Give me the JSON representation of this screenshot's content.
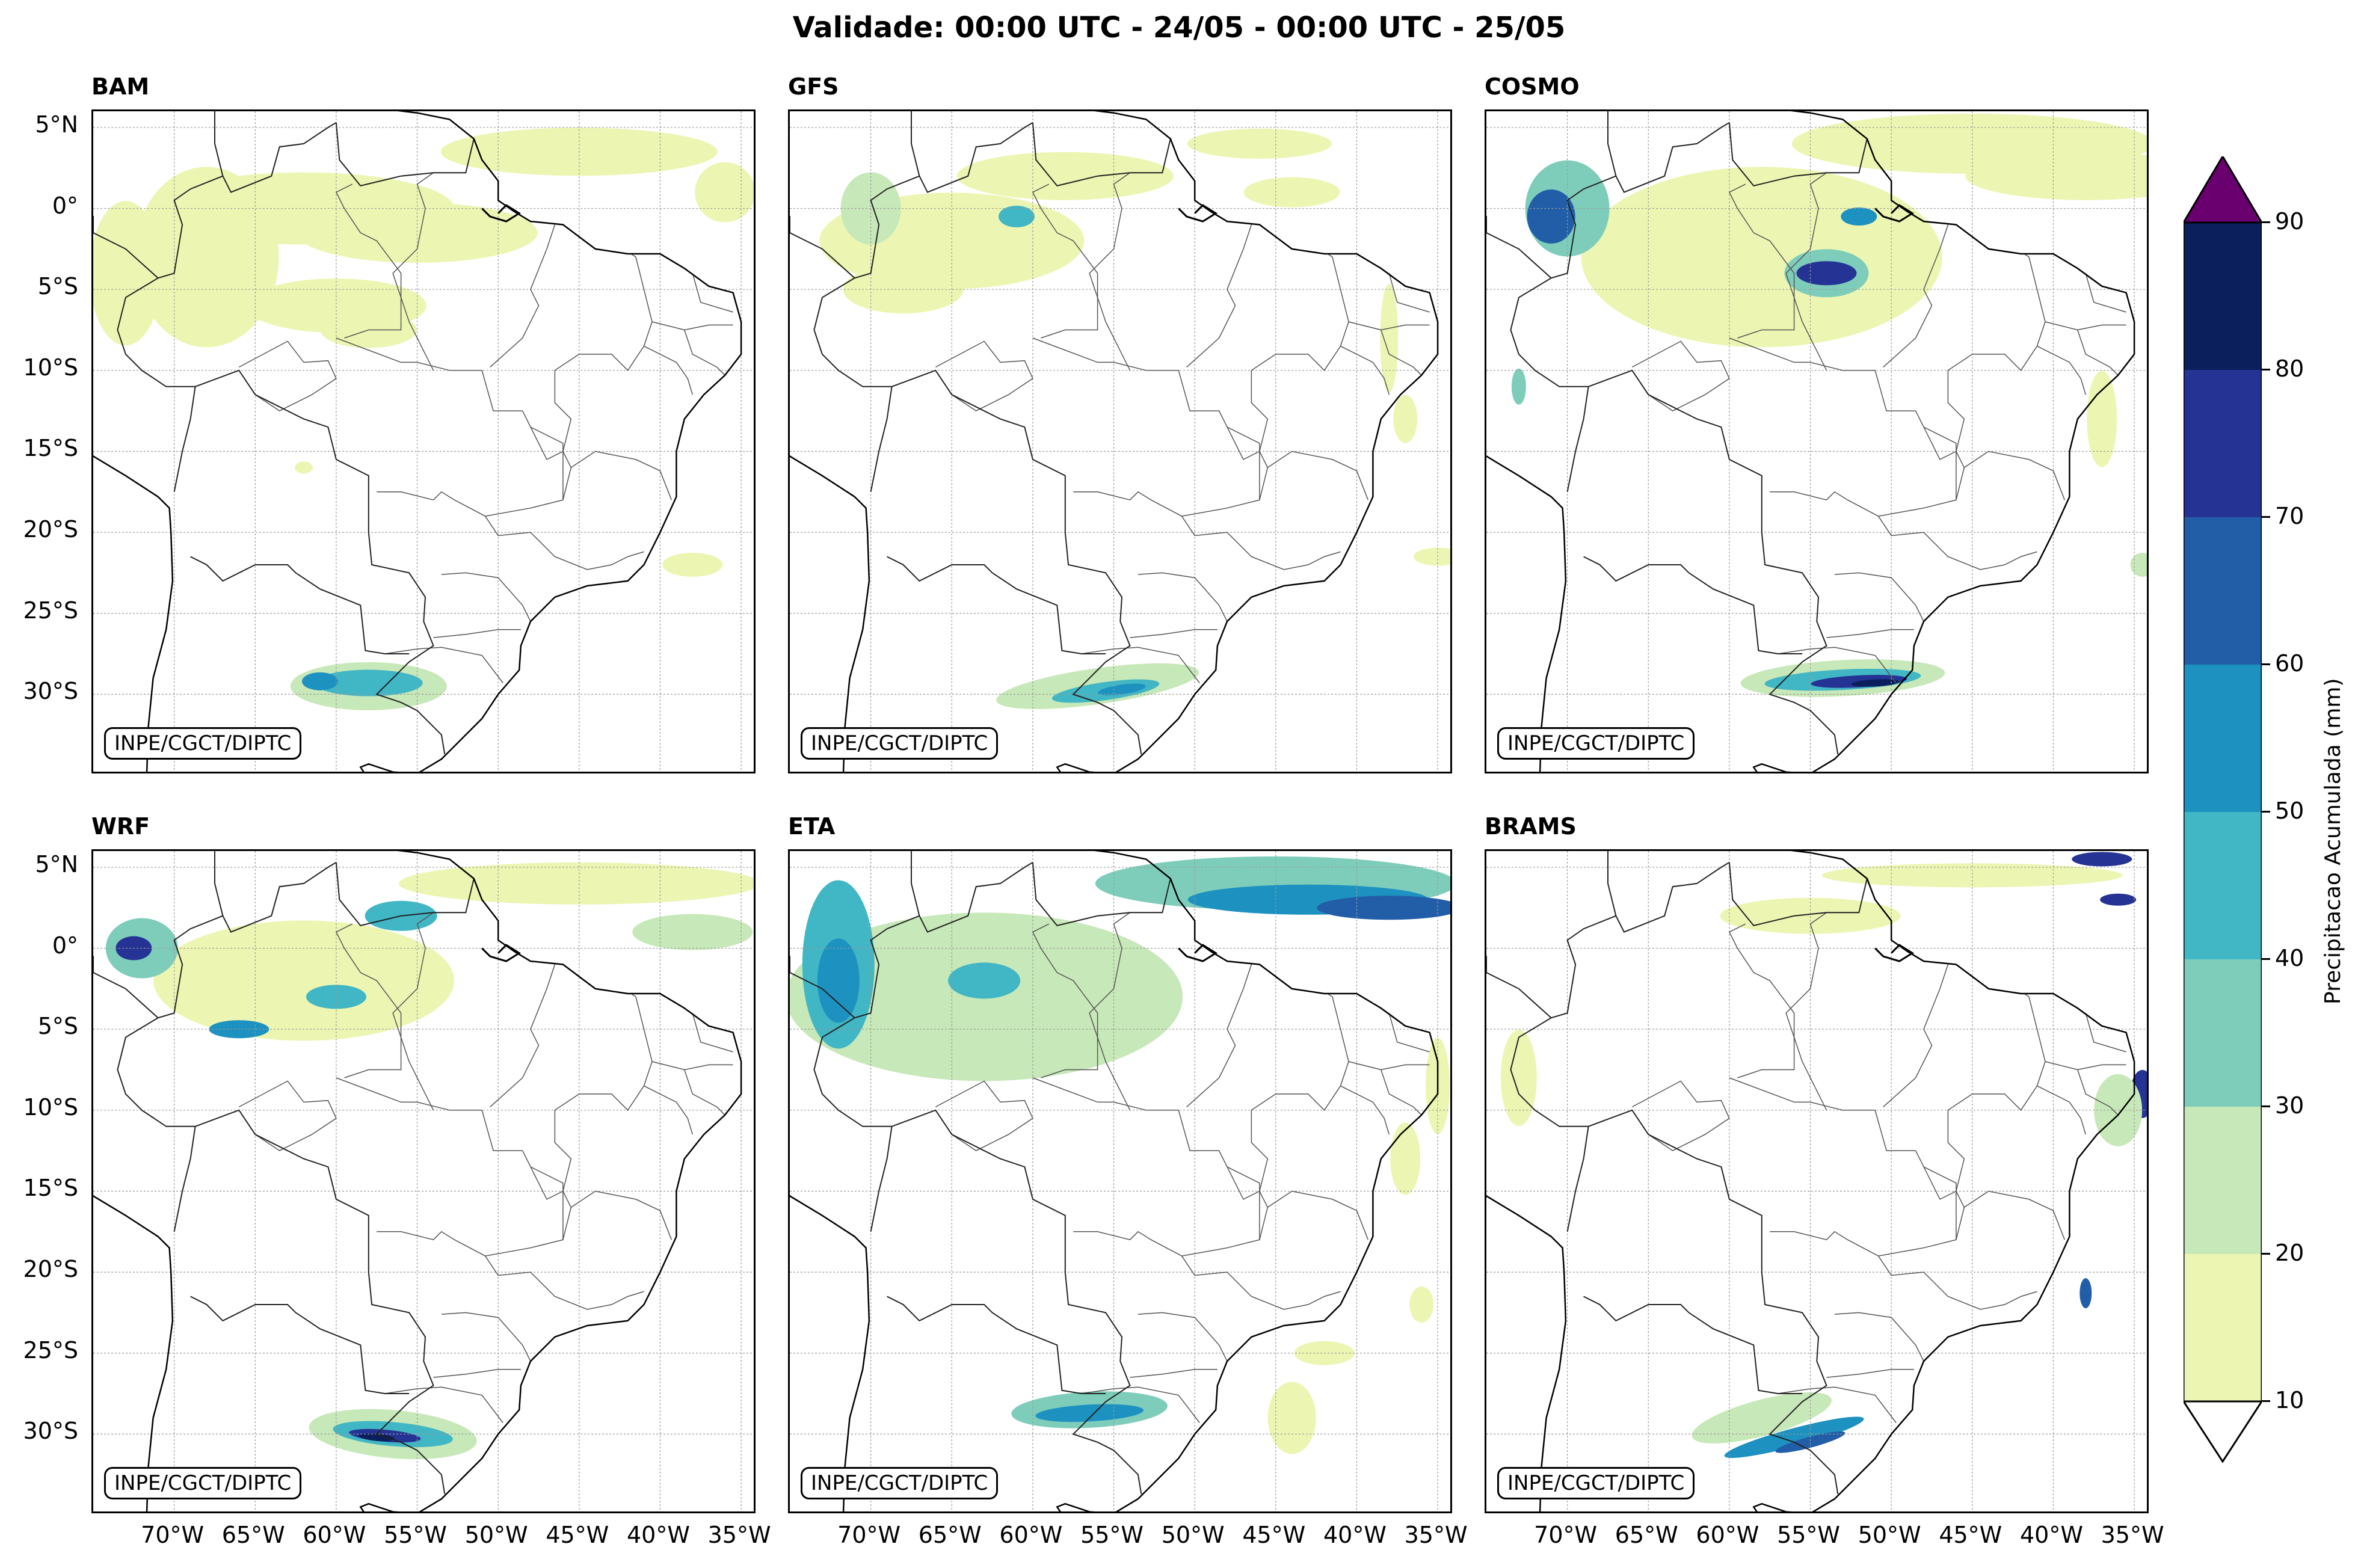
{
  "title": "Validade: 00:00 UTC - 24/05 - 00:00 UTC - 25/05",
  "credit": "INPE/CGCT/DIPTC",
  "panels": [
    {
      "name": "BAM"
    },
    {
      "name": "GFS"
    },
    {
      "name": "COSMO"
    },
    {
      "name": "WRF"
    },
    {
      "name": "ETA"
    },
    {
      "name": "BRAMS"
    }
  ],
  "lat_labels": [
    "5°N",
    "0°",
    "5°S",
    "10°S",
    "15°S",
    "20°S",
    "25°S",
    "30°S"
  ],
  "lon_labels": [
    "70°W",
    "65°W",
    "60°W",
    "55°W",
    "50°W",
    "45°W",
    "40°W",
    "35°W"
  ],
  "colorbar": {
    "title": "Precipitacao Acumulada (mm)",
    "ticks": [
      "10",
      "20",
      "30",
      "40",
      "50",
      "60",
      "70",
      "80",
      "90"
    ],
    "colors": [
      "#ecf6b2",
      "#c7e8b8",
      "#7ecdbb",
      "#41b6c4",
      "#1d91c0",
      "#225ea8",
      "#253494",
      "#0b1f5c"
    ],
    "over_color": "#6a006f",
    "under_color": "#ffffff"
  },
  "extent": {
    "lon": [
      -75,
      -34
    ],
    "lat": [
      -35,
      6
    ]
  }
}
